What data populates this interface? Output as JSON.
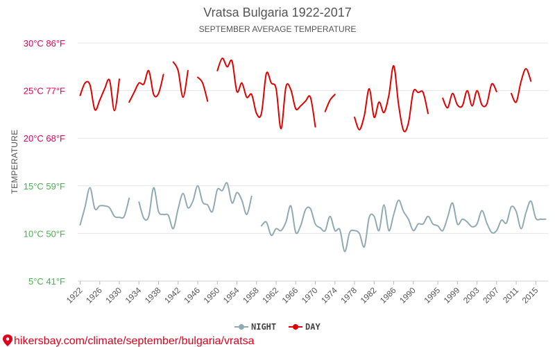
{
  "chart_data": {
    "type": "line",
    "title": "Vratsa Bulgaria 1922-2017",
    "subtitle": "SEPTEMBER AVERAGE TEMPERATURE",
    "ylabel": "TEMPERATURE",
    "ylim": [
      5,
      30
    ],
    "xlim": [
      1921.5,
      2017.5
    ],
    "y_ticks": [
      {
        "value": 30,
        "label": "30°C 86°F",
        "color": "#e0005a"
      },
      {
        "value": 25,
        "label": "25°C 77°F",
        "color": "#e0005a"
      },
      {
        "value": 20,
        "label": "20°C 68°F",
        "color": "#e0005a"
      },
      {
        "value": 15,
        "label": "15°C 59°F",
        "color": "#4caf50"
      },
      {
        "value": 10,
        "label": "10°C 50°F",
        "color": "#4caf50"
      },
      {
        "value": 5,
        "label": "5°C 41°F",
        "color": "#4caf50"
      }
    ],
    "x_ticks": [
      1922,
      1926,
      1930,
      1934,
      1938,
      1942,
      1946,
      1950,
      1954,
      1958,
      1962,
      1966,
      1970,
      1974,
      1978,
      1982,
      1986,
      1990,
      1995,
      1999,
      2003,
      2007,
      2011,
      2015
    ],
    "series": [
      {
        "name": "NIGHT",
        "color": "#90aab4",
        "segments": [
          [
            [
              1922,
              10.9
            ],
            [
              1923,
              12.8
            ],
            [
              1924,
              14.8
            ],
            [
              1925,
              12.6
            ],
            [
              1926,
              12.9
            ],
            [
              1927,
              12.9
            ],
            [
              1928,
              12.7
            ],
            [
              1929,
              11.8
            ],
            [
              1930,
              11.7
            ],
            [
              1931,
              11.8
            ],
            [
              1932,
              13.7
            ]
          ],
          [
            [
              1934,
              13.3
            ],
            [
              1935,
              11.6
            ],
            [
              1936,
              11.8
            ],
            [
              1937,
              14.8
            ],
            [
              1938,
              12.3
            ],
            [
              1939,
              12.0
            ],
            [
              1940,
              11.9
            ],
            [
              1941,
              10.5
            ],
            [
              1942,
              12.6
            ],
            [
              1943,
              14.2
            ],
            [
              1944,
              12.7
            ],
            [
              1945,
              13.4
            ],
            [
              1946,
              15.0
            ],
            [
              1947,
              13.3
            ],
            [
              1948,
              13.0
            ],
            [
              1949,
              12.3
            ],
            [
              1950,
              14.6
            ],
            [
              1951,
              14.5
            ],
            [
              1952,
              15.3
            ],
            [
              1953,
              13.2
            ],
            [
              1954,
              14.3
            ],
            [
              1955,
              13.5
            ],
            [
              1956,
              12.0
            ],
            [
              1957,
              13.9
            ]
          ],
          [
            [
              1959,
              10.8
            ],
            [
              1960,
              11.2
            ],
            [
              1961,
              9.8
            ],
            [
              1962,
              10.5
            ],
            [
              1963,
              10.3
            ],
            [
              1964,
              11.2
            ],
            [
              1965,
              12.9
            ],
            [
              1966,
              10.1
            ],
            [
              1967,
              10.8
            ],
            [
              1968,
              12.5
            ],
            [
              1969,
              12.6
            ],
            [
              1970,
              11.0
            ],
            [
              1971,
              10.6
            ],
            [
              1972,
              10.3
            ],
            [
              1973,
              11.8
            ],
            [
              1974,
              10.3
            ],
            [
              1975,
              10.4
            ],
            [
              1976,
              8.1
            ],
            [
              1977,
              10.1
            ],
            [
              1978,
              10.3
            ],
            [
              1979,
              10.0
            ],
            [
              1980,
              8.6
            ],
            [
              1981,
              11.7
            ],
            [
              1982,
              11.8
            ],
            [
              1983,
              10.3
            ],
            [
              1984,
              13.0
            ],
            [
              1985,
              10.3
            ],
            [
              1986,
              12.0
            ],
            [
              1987,
              13.5
            ],
            [
              1988,
              12.3
            ],
            [
              1989,
              11.5
            ],
            [
              1990,
              10.3
            ],
            [
              1991,
              11.0
            ],
            [
              1992,
              11.0
            ],
            [
              1993,
              11.8
            ],
            [
              1994,
              11.0
            ],
            [
              1995,
              10.8
            ],
            [
              1996,
              10.3
            ],
            [
              1997,
              11.7
            ],
            [
              1998,
              13.2
            ],
            [
              1999,
              11.0
            ],
            [
              2000,
              11.5
            ],
            [
              2001,
              11.2
            ],
            [
              2002,
              10.7
            ],
            [
              2003,
              11.0
            ],
            [
              2004,
              12.4
            ],
            [
              2005,
              11.1
            ],
            [
              2006,
              10.1
            ],
            [
              2007,
              10.3
            ],
            [
              2008,
              11.4
            ],
            [
              2009,
              11.1
            ],
            [
              2010,
              12.8
            ],
            [
              2011,
              12.3
            ],
            [
              2012,
              10.5
            ],
            [
              2013,
              12.2
            ],
            [
              2014,
              13.4
            ],
            [
              2015,
              11.6
            ],
            [
              2016,
              11.5
            ],
            [
              2017,
              11.5
            ]
          ]
        ]
      },
      {
        "name": "DAY",
        "color": "#e00000",
        "segments": [
          [
            [
              1922,
              24.5
            ],
            [
              1923,
              25.8
            ],
            [
              1924,
              25.6
            ],
            [
              1925,
              23.0
            ],
            [
              1926,
              24.0
            ],
            [
              1927,
              25.2
            ],
            [
              1928,
              26.1
            ],
            [
              1929,
              22.9
            ],
            [
              1930,
              26.2
            ]
          ],
          [
            [
              1932,
              23.8
            ],
            [
              1933,
              24.8
            ],
            [
              1934,
              25.8
            ],
            [
              1935,
              25.7
            ],
            [
              1936,
              27.1
            ],
            [
              1937,
              24.6
            ],
            [
              1938,
              24.7
            ],
            [
              1939,
              26.7
            ]
          ],
          [
            [
              1941,
              28.0
            ],
            [
              1942,
              27.1
            ],
            [
              1943,
              24.3
            ],
            [
              1944,
              27.1
            ]
          ],
          [
            [
              1946,
              26.4
            ],
            [
              1947,
              25.8
            ],
            [
              1948,
              23.9
            ]
          ],
          [
            [
              1950,
              27.1
            ],
            [
              1951,
              28.4
            ],
            [
              1952,
              27.5
            ],
            [
              1953,
              28.1
            ],
            [
              1954,
              24.9
            ],
            [
              1955,
              25.8
            ],
            [
              1956,
              24.3
            ],
            [
              1957,
              24.6
            ],
            [
              1958,
              22.6
            ],
            [
              1959,
              22.6
            ],
            [
              1960,
              26.8
            ],
            [
              1961,
              25.8
            ],
            [
              1962,
              25.2
            ],
            [
              1963,
              21.0
            ],
            [
              1964,
              25.4
            ],
            [
              1965,
              25.1
            ],
            [
              1966,
              23.1
            ],
            [
              1967,
              23.4
            ],
            [
              1968,
              23.9
            ],
            [
              1969,
              24.3
            ],
            [
              1970,
              21.2
            ]
          ],
          [
            [
              1972,
              22.8
            ],
            [
              1973,
              24.0
            ],
            [
              1974,
              24.6
            ]
          ],
          [
            [
              1978,
              22.2
            ],
            [
              1979,
              20.9
            ],
            [
              1980,
              22.4
            ],
            [
              1981,
              25.2
            ],
            [
              1982,
              22.2
            ],
            [
              1983,
              23.8
            ],
            [
              1984,
              22.7
            ],
            [
              1985,
              24.5
            ],
            [
              1986,
              27.6
            ],
            [
              1987,
              23.5
            ],
            [
              1988,
              20.8
            ],
            [
              1989,
              21.6
            ],
            [
              1990,
              24.9
            ],
            [
              1991,
              24.8
            ],
            [
              1992,
              24.8
            ],
            [
              1993,
              22.6
            ]
          ],
          [
            [
              1996,
              24.2
            ],
            [
              1997,
              23.2
            ],
            [
              1998,
              24.7
            ],
            [
              1999,
              23.5
            ],
            [
              2000,
              23.4
            ],
            [
              2001,
              25.0
            ],
            [
              2002,
              23.4
            ],
            [
              2003,
              25.0
            ],
            [
              2004,
              23.5
            ],
            [
              2005,
              23.6
            ],
            [
              2006,
              25.7
            ],
            [
              2007,
              24.9
            ]
          ],
          [
            [
              2010,
              24.7
            ],
            [
              2011,
              23.8
            ],
            [
              2012,
              26.0
            ],
            [
              2013,
              27.3
            ],
            [
              2014,
              26.0
            ]
          ]
        ]
      }
    ],
    "legend": [
      {
        "name": "NIGHT",
        "color": "#90aab4"
      },
      {
        "name": "DAY",
        "color": "#e00000"
      }
    ],
    "legend_position": "bottom-center"
  },
  "footer": {
    "url": "hikersbay.com/climate/september/bulgaria/vratsa",
    "color": "#e0001c"
  }
}
